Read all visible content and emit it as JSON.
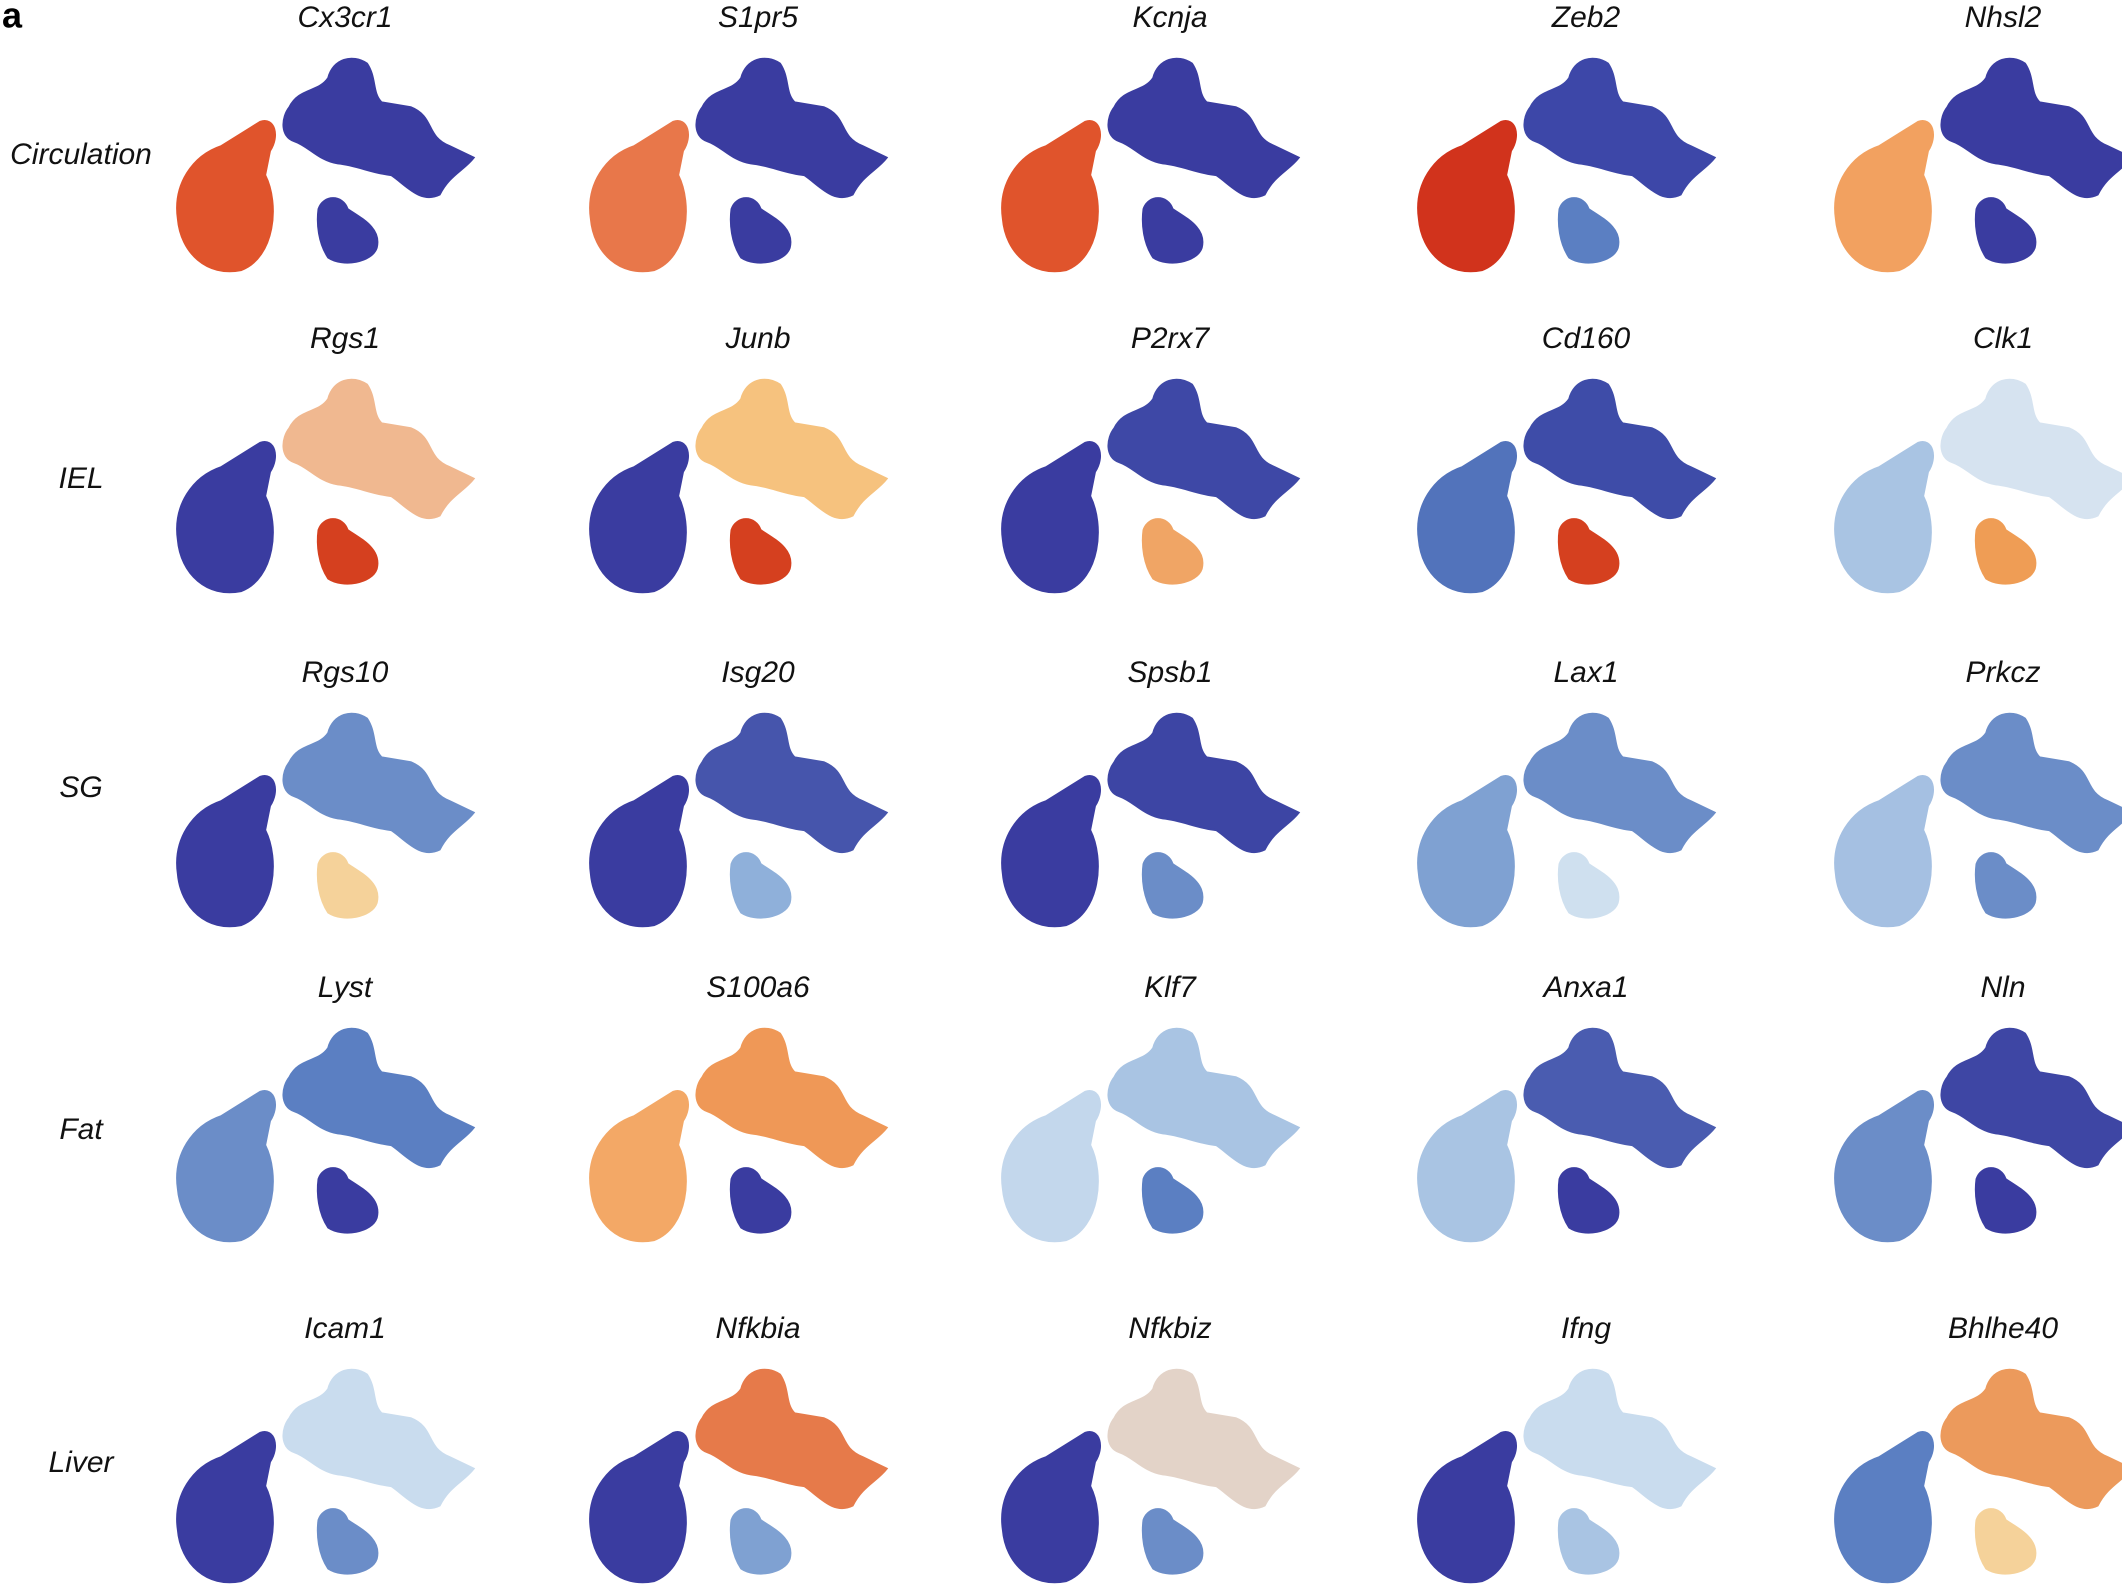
{
  "panel_label": "a",
  "rows": [
    {
      "label": "Circulation",
      "genes": [
        {
          "name": "Cx3cr1",
          "colors": [
            "#e0542c",
            "#3a3ca0",
            "#3a3ca0"
          ]
        },
        {
          "name": "S1pr5",
          "colors": [
            "#e8774a",
            "#3a3ca0",
            "#3a3ca0"
          ]
        },
        {
          "name": "Kcnja",
          "colors": [
            "#e0542c",
            "#3a3ca0",
            "#3a3ca0"
          ]
        },
        {
          "name": "Zeb2",
          "colors": [
            "#d1331c",
            "#3d47a8",
            "#5b7fc2"
          ]
        },
        {
          "name": "Nhsl2",
          "colors": [
            "#f2a160",
            "#3a3ca0",
            "#3a3ca0"
          ]
        }
      ]
    },
    {
      "label": "IEL",
      "genes": [
        {
          "name": "Rgs1",
          "colors": [
            "#3a3ca0",
            "#f0b890",
            "#d5401f"
          ]
        },
        {
          "name": "Junb",
          "colors": [
            "#3a3ca0",
            "#f6c27e",
            "#d5401f"
          ]
        },
        {
          "name": "P2rx7",
          "colors": [
            "#3a3ca0",
            "#3e48a6",
            "#f0a565"
          ]
        },
        {
          "name": "Cd160",
          "colors": [
            "#5273bb",
            "#3e4ca8",
            "#d5401f"
          ]
        },
        {
          "name": "Clk1",
          "colors": [
            "#a9c4e3",
            "#d6e3f0",
            "#ef9d55"
          ]
        }
      ]
    },
    {
      "label": "SG",
      "genes": [
        {
          "name": "Rgs10",
          "colors": [
            "#3a3ca0",
            "#6b8dc8",
            "#f5d29a"
          ]
        },
        {
          "name": "Isg20",
          "colors": [
            "#3a3ca0",
            "#4655ac",
            "#8fb0da"
          ]
        },
        {
          "name": "Spsb1",
          "colors": [
            "#3a3ca0",
            "#3d45a4",
            "#6b8dc8"
          ]
        },
        {
          "name": "Lax1",
          "colors": [
            "#7fa1d2",
            "#6b8dc8",
            "#cfe0ef"
          ]
        },
        {
          "name": "Prkcz",
          "colors": [
            "#a5c0e2",
            "#6b8dc8",
            "#6b8dc8"
          ]
        }
      ]
    },
    {
      "label": "Fat",
      "genes": [
        {
          "name": "Lyst",
          "colors": [
            "#6b8dc8",
            "#5b7fc2",
            "#3a3ca0"
          ]
        },
        {
          "name": "S100a6",
          "colors": [
            "#f3a866",
            "#ef9857",
            "#3a3ca0"
          ]
        },
        {
          "name": "Klf7",
          "colors": [
            "#c3d7ec",
            "#a9c4e3",
            "#5b7fc2"
          ]
        },
        {
          "name": "Anxa1",
          "colors": [
            "#a9c4e3",
            "#4a5cb0",
            "#3a3ca0"
          ]
        },
        {
          "name": "Nln",
          "colors": [
            "#6b8dc8",
            "#3e46a4",
            "#3a3ca0"
          ]
        }
      ]
    },
    {
      "label": "Liver",
      "genes": [
        {
          "name": "Icam1",
          "colors": [
            "#3a3ca0",
            "#c9dcee",
            "#6b8dc8"
          ]
        },
        {
          "name": "Nfkbia",
          "colors": [
            "#3a3ca0",
            "#e67a4a",
            "#7fa1d2"
          ]
        },
        {
          "name": "Nfkbiz",
          "colors": [
            "#3a3ca0",
            "#e3d3c8",
            "#6b8dc8"
          ]
        },
        {
          "name": "Ifng",
          "colors": [
            "#3a3ca0",
            "#c9dcee",
            "#a9c4e3"
          ]
        },
        {
          "name": "Bhlhe40",
          "colors": [
            "#5b7fc2",
            "#ec9a5c",
            "#f5d29a"
          ]
        }
      ]
    }
  ]
}
